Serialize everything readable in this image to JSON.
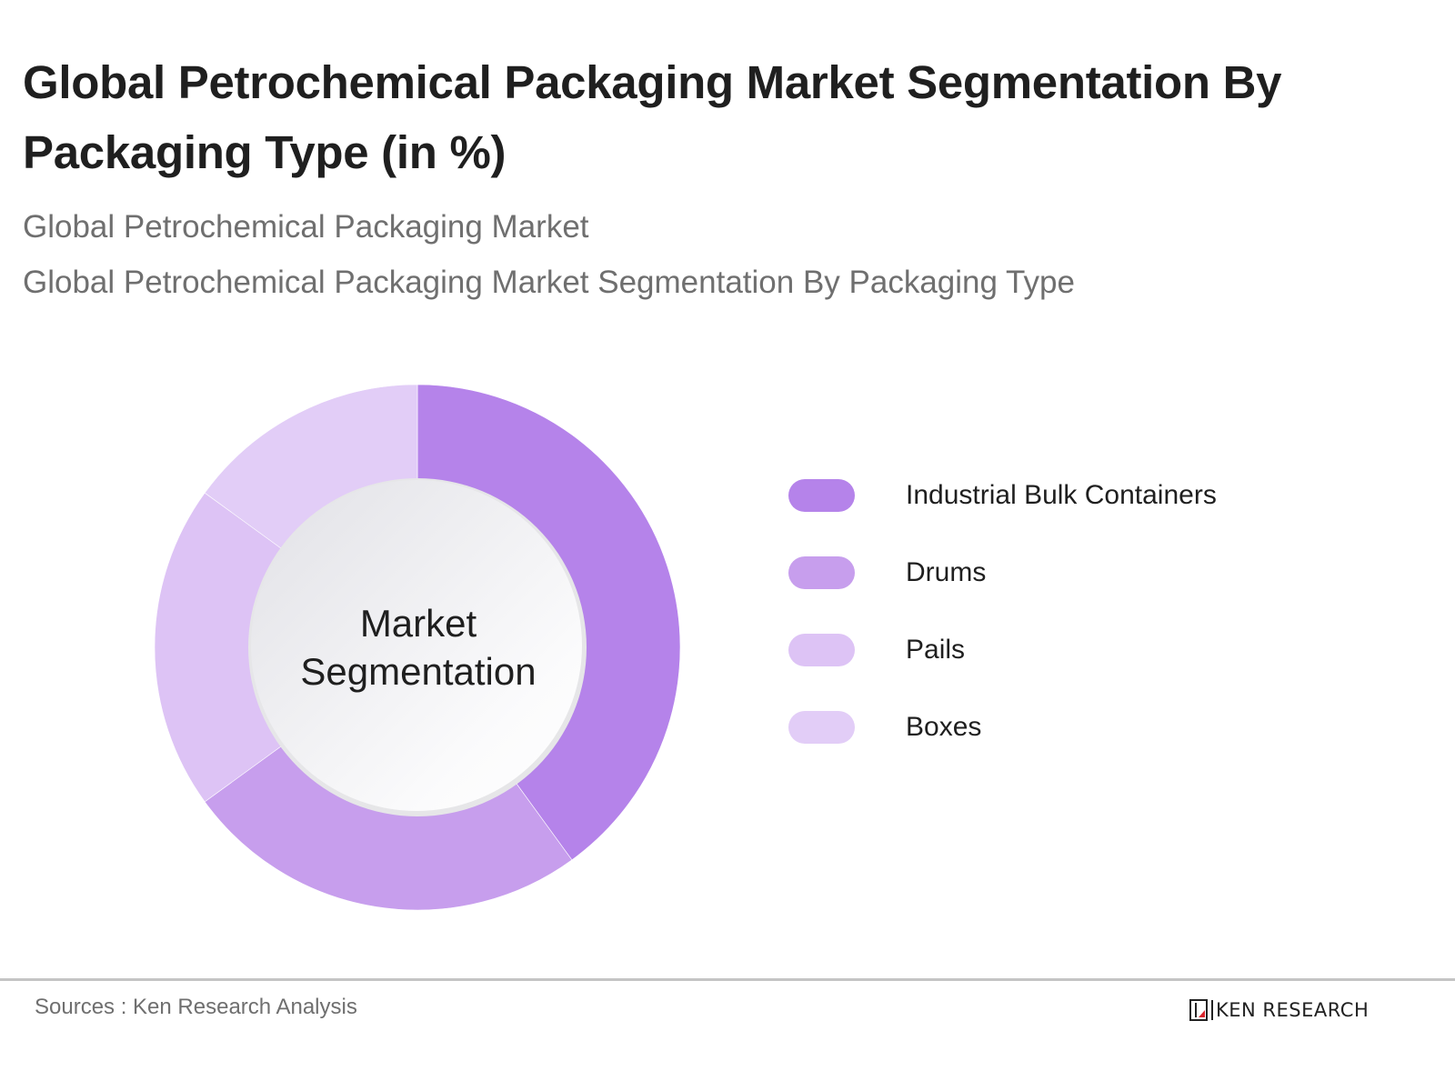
{
  "header": {
    "title": "Global Petrochemical Packaging Market Segmentation By Packaging Type (in %)",
    "subtitle_1": "Global Petrochemical Packaging Market",
    "subtitle_2": "Global Petrochemical Packaging Market Segmentation By Packaging Type"
  },
  "chart": {
    "center_label": "Market Segmentation"
  },
  "legend": {
    "items": [
      {
        "label": "Industrial Bulk Containers",
        "color": "#B583EA"
      },
      {
        "label": "Drums",
        "color": "#C79EED"
      },
      {
        "label": "Pails",
        "color": "#DDC3F5"
      },
      {
        "label": "Boxes",
        "color": "#E2CDF7"
      }
    ]
  },
  "footer": {
    "source": "Sources : Ken Research Analysis",
    "logo_text": "KEN RESEARCH",
    "logo_accent": "#D8232A"
  },
  "chart_data": {
    "type": "pie",
    "subtype": "donut",
    "title": "Global Petrochemical Packaging Market Segmentation By Packaging Type (in %)",
    "subtitle": "Global Petrochemical Packaging Market / Global Petrochemical Packaging Market Segmentation By Packaging Type",
    "center_text": "Market Segmentation",
    "categories": [
      "Industrial Bulk Containers",
      "Drums",
      "Pails",
      "Boxes"
    ],
    "values": [
      40,
      25,
      20,
      15
    ],
    "colors": [
      "#B583EA",
      "#C79EED",
      "#DDC3F5",
      "#E2CDF7"
    ],
    "start_angle_deg": 0,
    "direction": "clockwise",
    "legend_position": "right",
    "source": "Sources : Ken Research Analysis"
  }
}
